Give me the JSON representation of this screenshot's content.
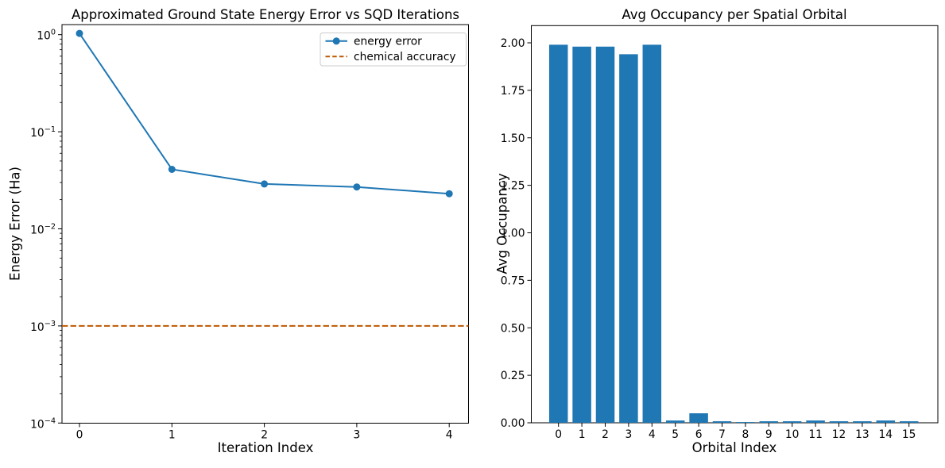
{
  "figure": {
    "background": "#ffffff"
  },
  "chart_data": [
    {
      "type": "line",
      "title": "Approximated Ground State Energy Error vs SQD Iterations",
      "xlabel": "Iteration Index",
      "ylabel": "Energy Error (Ha)",
      "yscale": "log",
      "xlim": [
        -0.2,
        4.2
      ],
      "ylim": [
        0.0001,
        1.3
      ],
      "grid": false,
      "x": [
        0,
        1,
        2,
        3,
        4
      ],
      "xtick_labels": [
        "0",
        "1",
        "2",
        "3",
        "4"
      ],
      "ytick_labels": [
        {
          "base": "10",
          "exp": "0",
          "value": 1
        },
        {
          "base": "10",
          "exp": "−1",
          "value": 0.1
        },
        {
          "base": "10",
          "exp": "−2",
          "value": 0.01
        },
        {
          "base": "10",
          "exp": "−3",
          "value": 0.001
        },
        {
          "base": "10",
          "exp": "−4",
          "value": 0.0001
        }
      ],
      "series": [
        {
          "name": "energy error",
          "kind": "line-markers",
          "color": "#1f77b4",
          "values": [
            1.03,
            0.041,
            0.029,
            0.027,
            0.023
          ]
        },
        {
          "name": "chemical accuracy",
          "kind": "hline-dashed",
          "color": "#BF5700",
          "y": 0.001
        }
      ],
      "legend": {
        "position": "upper right",
        "entries": [
          "energy error",
          "chemical accuracy"
        ]
      }
    },
    {
      "type": "bar",
      "title": "Avg Occupancy per Spatial Orbital",
      "xlabel": "Orbital Index",
      "ylabel": "Avg Occupancy",
      "ylim": [
        0,
        2.09
      ],
      "grid": false,
      "bar_color": "#1f77b4",
      "categories": [
        "0",
        "1",
        "2",
        "3",
        "4",
        "5",
        "6",
        "7",
        "8",
        "9",
        "10",
        "11",
        "12",
        "13",
        "14",
        "15"
      ],
      "values": [
        1.99,
        1.98,
        1.98,
        1.94,
        1.99,
        0.012,
        0.05,
        0.008,
        0.004,
        0.008,
        0.008,
        0.012,
        0.008,
        0.008,
        0.012,
        0.008
      ],
      "ytick_labels": [
        "0.00",
        "0.25",
        "0.50",
        "0.75",
        "1.00",
        "1.25",
        "1.50",
        "1.75",
        "2.00"
      ]
    }
  ]
}
